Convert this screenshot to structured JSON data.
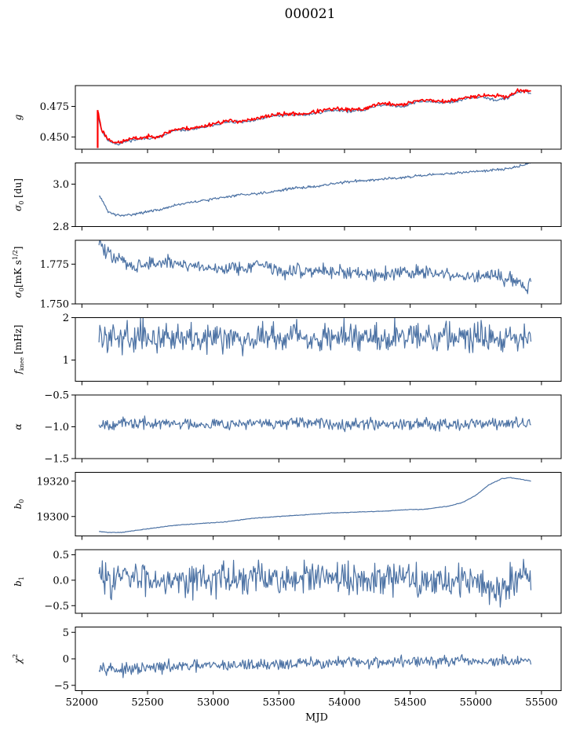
{
  "figure": {
    "title": "000021"
  },
  "colors": {
    "series": "#4c72a4",
    "highlight": "#ff0000",
    "axes": "#000000"
  },
  "chart_data": [
    {
      "type": "line",
      "ylabel": "g",
      "ylim": [
        0.44,
        0.492
      ],
      "yticks": [
        0.45,
        0.475
      ],
      "ytick_decimals": 3,
      "series": [
        {
          "color": "#4c72a4",
          "noise": 0.0006,
          "seed": 11,
          "points": [
            [
              52120,
              0.469
            ],
            [
              52150,
              0.455
            ],
            [
              52200,
              0.447
            ],
            [
              52280,
              0.444
            ],
            [
              52350,
              0.447
            ],
            [
              52500,
              0.449
            ],
            [
              52600,
              0.45
            ],
            [
              52700,
              0.455
            ],
            [
              52800,
              0.456
            ],
            [
              52900,
              0.457
            ],
            [
              53000,
              0.46
            ],
            [
              53100,
              0.462
            ],
            [
              53200,
              0.462
            ],
            [
              53300,
              0.463
            ],
            [
              53450,
              0.467
            ],
            [
              53600,
              0.468
            ],
            [
              53700,
              0.468
            ],
            [
              53850,
              0.471
            ],
            [
              53950,
              0.472
            ],
            [
              54050,
              0.471
            ],
            [
              54150,
              0.472
            ],
            [
              54250,
              0.476
            ],
            [
              54350,
              0.476
            ],
            [
              54450,
              0.475
            ],
            [
              54550,
              0.479
            ],
            [
              54650,
              0.479
            ],
            [
              54750,
              0.478
            ],
            [
              54850,
              0.479
            ],
            [
              54950,
              0.482
            ],
            [
              55050,
              0.483
            ],
            [
              55150,
              0.48
            ],
            [
              55250,
              0.482
            ],
            [
              55320,
              0.487
            ],
            [
              55380,
              0.487
            ],
            [
              55420,
              0.485
            ]
          ]
        },
        {
          "color": "#ff0000",
          "noise": 0.0008,
          "seed": 23,
          "points": [
            [
              52120,
              0.472
            ],
            [
              52150,
              0.456
            ],
            [
              52200,
              0.448
            ],
            [
              52280,
              0.445
            ],
            [
              52350,
              0.448
            ],
            [
              52500,
              0.45
            ],
            [
              52600,
              0.451
            ],
            [
              52700,
              0.456
            ],
            [
              52800,
              0.457
            ],
            [
              52900,
              0.458
            ],
            [
              53000,
              0.461
            ],
            [
              53100,
              0.463
            ],
            [
              53200,
              0.463
            ],
            [
              53300,
              0.464
            ],
            [
              53450,
              0.468
            ],
            [
              53600,
              0.469
            ],
            [
              53700,
              0.469
            ],
            [
              53850,
              0.472
            ],
            [
              53950,
              0.473
            ],
            [
              54050,
              0.472
            ],
            [
              54150,
              0.473
            ],
            [
              54250,
              0.477
            ],
            [
              54350,
              0.477
            ],
            [
              54450,
              0.476
            ],
            [
              54550,
              0.48
            ],
            [
              54650,
              0.48
            ],
            [
              54750,
              0.479
            ],
            [
              54850,
              0.48
            ],
            [
              54950,
              0.483
            ],
            [
              55050,
              0.484
            ],
            [
              55100,
              0.484
            ],
            [
              55250,
              0.483
            ],
            [
              55320,
              0.488
            ],
            [
              55380,
              0.488
            ],
            [
              55420,
              0.487
            ]
          ]
        }
      ],
      "spikes": [
        [
          52120,
          0.441,
          0.472
        ]
      ]
    },
    {
      "type": "line",
      "ylabel": "σ0 [du]",
      "ylim": [
        2.8,
        3.1
      ],
      "yticks": [
        2.8,
        3.0
      ],
      "ytick_decimals": 1,
      "series": [
        {
          "color": "#4c72a4",
          "noise": 0.003,
          "seed": 31,
          "points": [
            [
              52130,
              2.95
            ],
            [
              52200,
              2.87
            ],
            [
              52260,
              2.855
            ],
            [
              52300,
              2.85
            ],
            [
              52400,
              2.86
            ],
            [
              52500,
              2.87
            ],
            [
              52600,
              2.88
            ],
            [
              52700,
              2.9
            ],
            [
              52800,
              2.91
            ],
            [
              52900,
              2.92
            ],
            [
              53000,
              2.93
            ],
            [
              53200,
              2.95
            ],
            [
              53400,
              2.96
            ],
            [
              53600,
              2.98
            ],
            [
              53800,
              2.99
            ],
            [
              54000,
              3.01
            ],
            [
              54200,
              3.02
            ],
            [
              54400,
              3.03
            ],
            [
              54600,
              3.04
            ],
            [
              54800,
              3.05
            ],
            [
              55000,
              3.06
            ],
            [
              55200,
              3.07
            ],
            [
              55300,
              3.08
            ],
            [
              55420,
              3.1
            ]
          ]
        }
      ]
    },
    {
      "type": "line",
      "ylabel": "σ0[mK s^1/2]",
      "ylim": [
        1.75,
        1.79
      ],
      "yticks": [
        1.75,
        1.775
      ],
      "ytick_decimals": 3,
      "series": [
        {
          "color": "#4c72a4",
          "noise": 0.0022,
          "seed": 47,
          "points": [
            [
              52130,
              1.79
            ],
            [
              52180,
              1.782
            ],
            [
              52250,
              1.779
            ],
            [
              52400,
              1.774
            ],
            [
              52600,
              1.776
            ],
            [
              52800,
              1.775
            ],
            [
              53000,
              1.772
            ],
            [
              53200,
              1.773
            ],
            [
              53300,
              1.774
            ],
            [
              53400,
              1.775
            ],
            [
              53500,
              1.77
            ],
            [
              53700,
              1.771
            ],
            [
              53900,
              1.771
            ],
            [
              54100,
              1.769
            ],
            [
              54300,
              1.769
            ],
            [
              54500,
              1.77
            ],
            [
              54700,
              1.769
            ],
            [
              54900,
              1.767
            ],
            [
              55100,
              1.767
            ],
            [
              55300,
              1.766
            ],
            [
              55380,
              1.759
            ],
            [
              55420,
              1.766
            ]
          ]
        }
      ]
    },
    {
      "type": "line",
      "ylabel": "fknee [mHz]",
      "ylim": [
        0.5,
        2.0
      ],
      "yticks": [
        1,
        2
      ],
      "ytick_decimals": 0,
      "series": [
        {
          "color": "#4c72a4",
          "noise": 0.17,
          "seed": 59,
          "points": [
            [
              52130,
              1.55
            ],
            [
              55420,
              1.55
            ]
          ]
        }
      ]
    },
    {
      "type": "line",
      "ylabel": "α",
      "ylim": [
        -1.5,
        -0.5
      ],
      "yticks": [
        -1.5,
        -1.0,
        -0.5
      ],
      "ytick_decimals": 1,
      "series": [
        {
          "color": "#4c72a4",
          "noise": 0.045,
          "seed": 67,
          "points": [
            [
              52130,
              -0.95
            ],
            [
              55420,
              -0.95
            ]
          ]
        }
      ]
    },
    {
      "type": "line",
      "ylabel": "b0",
      "ylim": [
        19289,
        19325
      ],
      "yticks": [
        19300,
        19320
      ],
      "ytick_decimals": 0,
      "series": [
        {
          "color": "#4c72a4",
          "noise": 0.08,
          "seed": 71,
          "points": [
            [
              52130,
              19291.5
            ],
            [
              52200,
              19291
            ],
            [
              52300,
              19291
            ],
            [
              52500,
              19293
            ],
            [
              52700,
              19295
            ],
            [
              52900,
              19296
            ],
            [
              53100,
              19297
            ],
            [
              53300,
              19299
            ],
            [
              53500,
              19300
            ],
            [
              53700,
              19301
            ],
            [
              53900,
              19302
            ],
            [
              54100,
              19302.5
            ],
            [
              54300,
              19303
            ],
            [
              54500,
              19304
            ],
            [
              54600,
              19304
            ],
            [
              54700,
              19305
            ],
            [
              54800,
              19306
            ],
            [
              54900,
              19308
            ],
            [
              55000,
              19312
            ],
            [
              55100,
              19318
            ],
            [
              55200,
              19321.5
            ],
            [
              55260,
              19322
            ],
            [
              55350,
              19321
            ],
            [
              55420,
              19320
            ]
          ]
        }
      ]
    },
    {
      "type": "line",
      "ylabel": "b1",
      "ylim": [
        -0.65,
        0.6
      ],
      "yticks": [
        -0.5,
        0.0,
        0.5
      ],
      "ytick_decimals": 1,
      "series": [
        {
          "color": "#4c72a4",
          "noise": 0.16,
          "seed": 83,
          "points": [
            [
              52130,
              0.05
            ],
            [
              55000,
              0.0
            ],
            [
              55100,
              -0.22
            ],
            [
              55200,
              -0.15
            ],
            [
              55300,
              0.1
            ],
            [
              55420,
              0.15
            ]
          ]
        }
      ]
    },
    {
      "type": "line",
      "ylabel": "χ2",
      "ylim": [
        -6,
        6
      ],
      "yticks": [
        -5,
        0,
        5
      ],
      "ytick_decimals": 0,
      "series": [
        {
          "color": "#4c72a4",
          "noise": 0.55,
          "seed": 97,
          "points": [
            [
              52130,
              -1.2
            ],
            [
              52300,
              -2.2
            ],
            [
              52600,
              -1.6
            ],
            [
              53000,
              -1.3
            ],
            [
              53500,
              -1.0
            ],
            [
              54000,
              -0.7
            ],
            [
              54500,
              -0.5
            ],
            [
              55000,
              -0.5
            ],
            [
              55420,
              -0.6
            ]
          ]
        }
      ]
    }
  ],
  "xaxis": {
    "label": "MJD",
    "ticks": [
      52000,
      52500,
      53000,
      53500,
      54000,
      54500,
      55000,
      55500
    ],
    "xlim": [
      51950,
      55650
    ]
  }
}
